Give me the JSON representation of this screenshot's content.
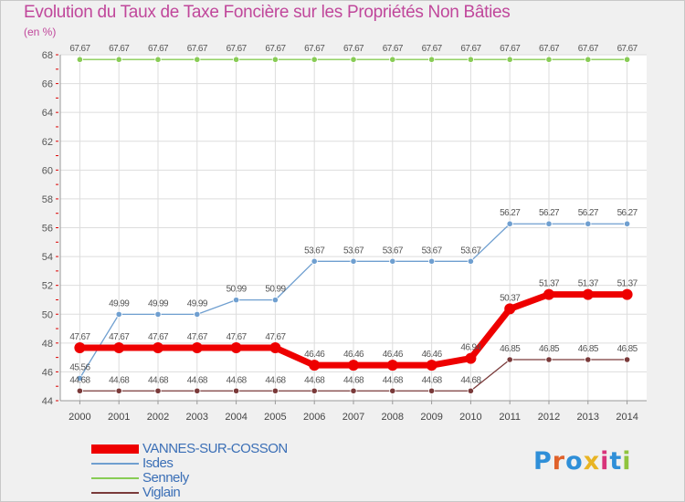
{
  "header": {
    "title": "Evolution du Taux de Taxe Foncière sur les Propriétés Non Bâties",
    "unit": "(en %)"
  },
  "chart_data": {
    "type": "line",
    "title": "Evolution du Taux de Taxe Foncière sur les Propriétés Non Bâties",
    "ylabel": "(en %)",
    "xlabel": "",
    "ylim": [
      44,
      68
    ],
    "yticks": [
      44,
      46,
      48,
      50,
      52,
      54,
      56,
      58,
      60,
      62,
      64,
      66,
      68
    ],
    "grid": true,
    "categories": [
      "2000",
      "2001",
      "2002",
      "2003",
      "2004",
      "2005",
      "2006",
      "2007",
      "2008",
      "2009",
      "2010",
      "2011",
      "2012",
      "2013",
      "2014"
    ],
    "series": [
      {
        "name": "VANNES-SUR-COSSON",
        "color": "#ee0000",
        "thick": true,
        "values": [
          47.67,
          47.67,
          47.67,
          47.67,
          47.67,
          47.67,
          46.46,
          46.46,
          46.46,
          46.46,
          46.94,
          50.37,
          51.37,
          51.37,
          51.37
        ],
        "labels": [
          "47.67",
          "47.67",
          "47.67",
          "47.67",
          "47.67",
          "47.67",
          "46.46",
          "46.46",
          "46.46",
          "46.46",
          "46.94",
          "50.37",
          "51.37",
          "51.37",
          "51.37"
        ]
      },
      {
        "name": "Isdes",
        "color": "#6f9fd0",
        "thick": false,
        "values": [
          45.56,
          49.99,
          49.99,
          49.99,
          50.99,
          50.99,
          53.67,
          53.67,
          53.67,
          53.67,
          53.67,
          56.27,
          56.27,
          56.27,
          56.27
        ],
        "labels": [
          "45.56",
          "49.99",
          "49.99",
          "49.99",
          "50.99",
          "50.99",
          "53.67",
          "53.67",
          "53.67",
          "53.67",
          "53.67",
          "56.27",
          "56.27",
          "56.27",
          "56.27"
        ]
      },
      {
        "name": "Sennely",
        "color": "#88cc55",
        "thick": false,
        "values": [
          67.67,
          67.67,
          67.67,
          67.67,
          67.67,
          67.67,
          67.67,
          67.67,
          67.67,
          67.67,
          67.67,
          67.67,
          67.67,
          67.67,
          67.67
        ],
        "labels": [
          "67.67",
          "67.67",
          "67.67",
          "67.67",
          "67.67",
          "67.67",
          "67.67",
          "67.67",
          "67.67",
          "67.67",
          "67.67",
          "67.67",
          "67.67",
          "67.67",
          "67.67"
        ]
      },
      {
        "name": "Viglain",
        "color": "#7a3a3a",
        "thick": false,
        "values": [
          44.68,
          44.68,
          44.68,
          44.68,
          44.68,
          44.68,
          44.68,
          44.68,
          44.68,
          44.68,
          44.68,
          46.85,
          46.85,
          46.85,
          46.85
        ],
        "labels": [
          "44.68",
          "44.68",
          "44.68",
          "44.68",
          "44.68",
          "44.68",
          "44.68",
          "44.68",
          "44.68",
          "44.68",
          "44.68",
          "46.85",
          "46.85",
          "46.85",
          "46.85"
        ]
      }
    ]
  },
  "legend": {
    "items": [
      {
        "label": "VANNES-SUR-COSSON",
        "color": "#ee0000"
      },
      {
        "label": "Isdes",
        "color": "#6f9fd0"
      },
      {
        "label": "Sennely",
        "color": "#88cc55"
      },
      {
        "label": "Viglain",
        "color": "#7a3a3a"
      }
    ]
  },
  "logo": {
    "letters": [
      "P",
      "r",
      "o",
      "x",
      "i",
      "t",
      "i"
    ],
    "colors": [
      "#2f8fd8",
      "#e0612a",
      "#2f8fd8",
      "#e8b423",
      "#d8337a",
      "#2f8fd8",
      "#8fc43e"
    ]
  }
}
